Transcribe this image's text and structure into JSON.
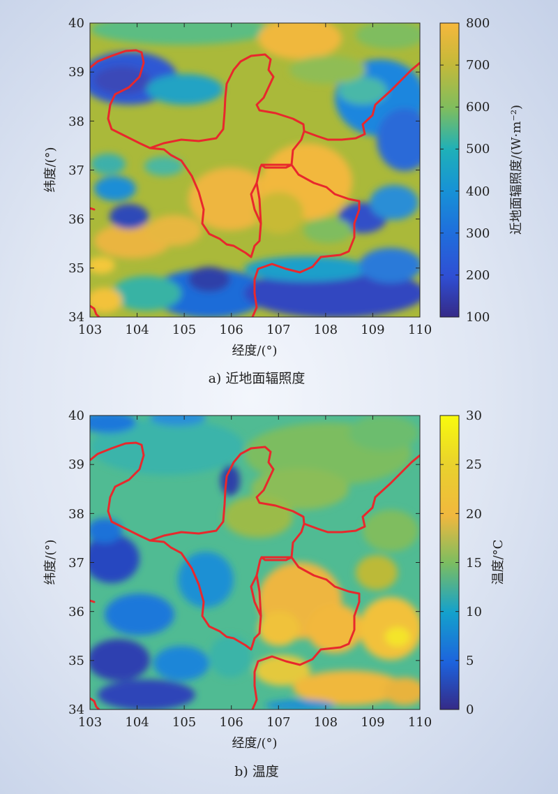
{
  "panels": [
    {
      "id": "a",
      "caption": "a) 近地面辐照度",
      "xlabel": "经度/(°)",
      "ylabel": "纬度/(°)",
      "x_ticks": [
        "103",
        "104",
        "105",
        "106",
        "107",
        "108",
        "109",
        "110"
      ],
      "y_ticks": [
        "34",
        "35",
        "36",
        "37",
        "38",
        "39",
        "40"
      ],
      "colorbar_label": "近地面辐照度/(W·m⁻²)",
      "colorbar_ticks": [
        "100",
        "200",
        "300",
        "400",
        "500",
        "600",
        "700",
        "800"
      ],
      "colormap": "parula"
    },
    {
      "id": "b",
      "caption": "b) 温度",
      "xlabel": "经度/(°)",
      "ylabel": "纬度/(°)",
      "x_ticks": [
        "103",
        "104",
        "105",
        "106",
        "107",
        "108",
        "109",
        "110"
      ],
      "y_ticks": [
        "34",
        "35",
        "36",
        "37",
        "38",
        "39",
        "40"
      ],
      "colorbar_label": "温度/°C",
      "colorbar_ticks": [
        "0",
        "5",
        "10",
        "15",
        "20",
        "25",
        "30"
      ],
      "colormap": "parula"
    }
  ],
  "colors": {
    "boundary": "#e8282c",
    "parula": [
      "#352a87",
      "#2f50d6",
      "#1a82de",
      "#12a5c8",
      "#3cb89f",
      "#7fbd5e",
      "#b9ba33",
      "#f4ba3c",
      "#f9fb0e"
    ]
  }
}
